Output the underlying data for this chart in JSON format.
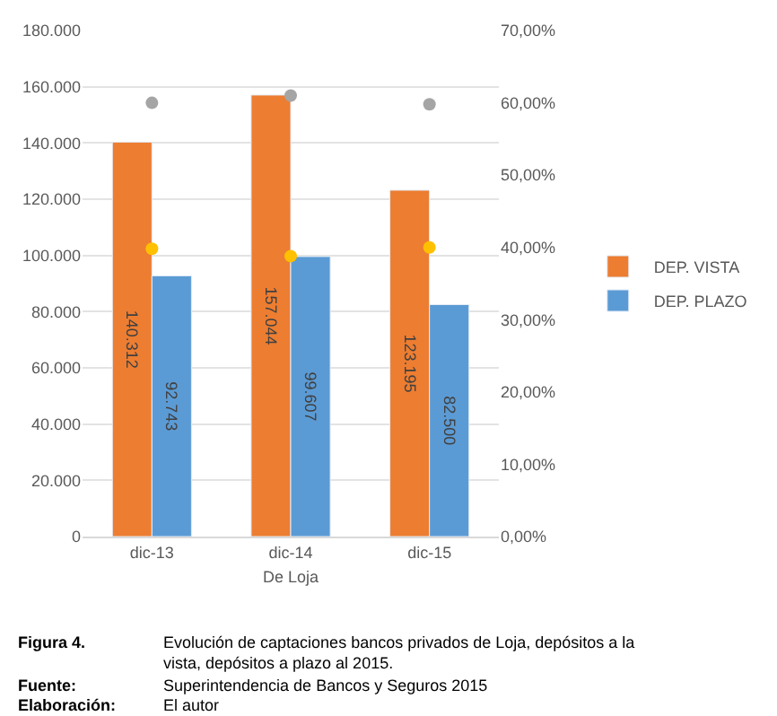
{
  "chart_data": {
    "type": "bar",
    "categories": [
      "dic-13",
      "dic-14",
      "dic-15"
    ],
    "xlabel": "De Loja",
    "series": [
      {
        "name": "DEP. VISTA",
        "color": "#ed7d31",
        "values": [
          140312,
          157044,
          123195
        ],
        "value_labels": [
          "140.312",
          "157.044",
          "123.195"
        ]
      },
      {
        "name": "DEP. PLAZO",
        "color": "#5b9bd5",
        "values": [
          92743,
          99607,
          82500
        ],
        "value_labels": [
          "92.743",
          "99.607",
          "82.500"
        ]
      },
      {
        "type": "scatter",
        "axis": "y2",
        "color": "#a5a5a5",
        "values": [
          60.0,
          61.0,
          59.8
        ]
      },
      {
        "type": "scatter",
        "axis": "y2",
        "color": "#ffc000",
        "values": [
          39.8,
          38.8,
          40.0
        ]
      }
    ],
    "ylim": [
      0,
      180000
    ],
    "yticks": [
      {
        "value": 0,
        "label": "0"
      },
      {
        "value": 20000,
        "label": "20.000"
      },
      {
        "value": 40000,
        "label": "40.000"
      },
      {
        "value": 60000,
        "label": "60.000"
      },
      {
        "value": 80000,
        "label": "80.000"
      },
      {
        "value": 100000,
        "label": "100.000"
      },
      {
        "value": 120000,
        "label": "120.000"
      },
      {
        "value": 140000,
        "label": "140.000"
      },
      {
        "value": 160000,
        "label": "160.000"
      },
      {
        "value": 180000,
        "label": "180.000"
      }
    ],
    "y2lim": [
      0,
      70
    ],
    "y2ticks": [
      {
        "value": 0,
        "label": "0,00%"
      },
      {
        "value": 10,
        "label": "10,00%"
      },
      {
        "value": 20,
        "label": "20,00%"
      },
      {
        "value": 30,
        "label": "30,00%"
      },
      {
        "value": 40,
        "label": "40,00%"
      },
      {
        "value": 50,
        "label": "50,00%"
      },
      {
        "value": 60,
        "label": "60,00%"
      },
      {
        "value": 70,
        "label": "70,00%"
      }
    ],
    "grid": "y",
    "legend": "right",
    "marker": "circle",
    "annotations": [
      "Figura 4.",
      "Evolución de captaciones bancos privados de Loja, depósitos a la vista, depósitos a plazo al 2015.",
      "Fuente:",
      "Superintendencia de Bancos y Seguros 2015",
      "Elaboración:",
      "El autor"
    ]
  }
}
